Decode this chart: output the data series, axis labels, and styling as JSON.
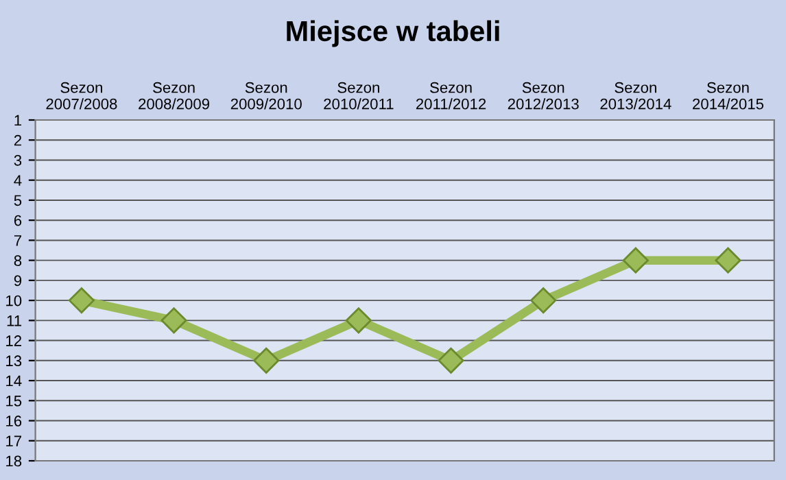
{
  "chart_data": {
    "type": "line",
    "title": "Miejsce w tabeli",
    "categories": [
      "Sezon\n2007/2008",
      "Sezon\n2008/2009",
      "Sezon\n2009/2010",
      "Sezon\n2010/2011",
      "Sezon\n2011/2012",
      "Sezon\n2012/2013",
      "Sezon\n2013/2014",
      "Sezon\n2014/2015"
    ],
    "series": [
      {
        "color": "#9bbb59",
        "values": [
          10,
          11,
          13,
          11,
          13,
          10,
          8,
          8
        ]
      }
    ],
    "ylim": [
      18,
      1
    ],
    "yticks": [
      1,
      2,
      3,
      4,
      5,
      6,
      7,
      8,
      9,
      10,
      11,
      12,
      13,
      14,
      15,
      16,
      17,
      18
    ],
    "grid": "y",
    "marker": "diamond",
    "line_style": "solid",
    "legend": false
  }
}
